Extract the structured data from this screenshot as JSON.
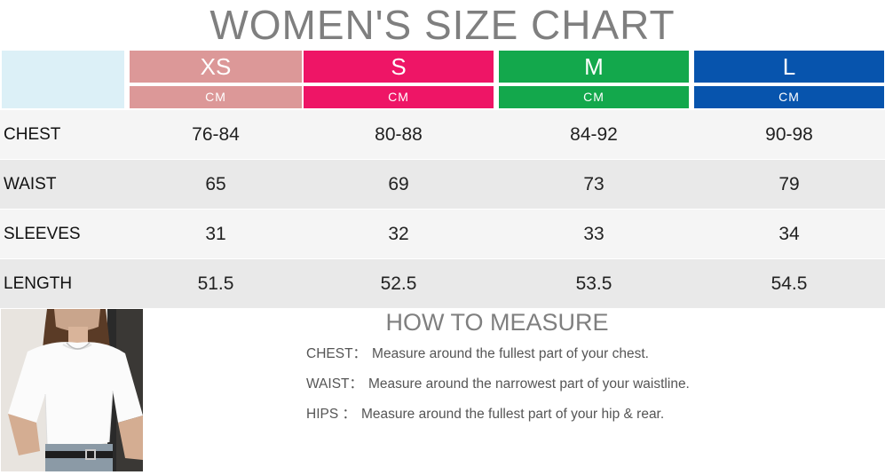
{
  "title": "WOMEN'S SIZE CHART",
  "sizes": [
    {
      "label": "XS",
      "unit": "CM",
      "color": "#dc9898",
      "unit_color": "#dc9898"
    },
    {
      "label": "S",
      "unit": "CM",
      "color": "#ee1566",
      "unit_color": "#ee1566"
    },
    {
      "label": "M",
      "unit": "CM",
      "color": "#13a84c",
      "unit_color": "#13a84c"
    },
    {
      "label": "L",
      "unit": "CM",
      "color": "#0754ad",
      "unit_color": "#0754ad"
    }
  ],
  "rows": [
    {
      "label": "CHEST",
      "values": [
        "76-84",
        "80-88",
        "84-92",
        "90-98"
      ]
    },
    {
      "label": "WAIST",
      "values": [
        "65",
        "69",
        "73",
        "79"
      ]
    },
    {
      "label": "SLEEVES",
      "values": [
        "31",
        "32",
        "33",
        "34"
      ]
    },
    {
      "label": "LENGTH",
      "values": [
        "51.5",
        "52.5",
        "53.5",
        "54.5"
      ]
    }
  ],
  "how_to_measure": {
    "title": "HOW TO MEASURE",
    "items": [
      {
        "key": "CHEST：",
        "desc": "Measure around the fullest part of your chest."
      },
      {
        "key": "WAIST：",
        "desc": "Measure around the narrowest part of your waistline."
      },
      {
        "key": "HIPS ：",
        "desc": "Measure around the fullest part of your hip & rear."
      }
    ]
  },
  "colors": {
    "title": "#7f7f7f",
    "corner": "#dcf0f7",
    "row_light": "#f5f5f5",
    "row_dark": "#e9e9e9"
  }
}
